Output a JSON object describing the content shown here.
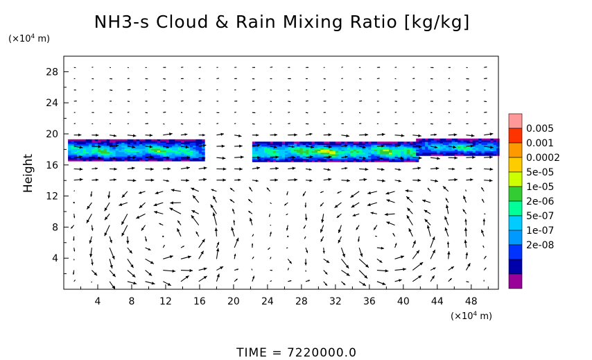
{
  "chart_data": {
    "type": "heatmap",
    "title": "NH3-s Cloud & Rain Mixing Ratio [kg/kg]",
    "ylabel": "Height",
    "xunit_prefix": "(×10",
    "xunit_exp": "4",
    "xunit_suffix": " m)",
    "yunit_prefix": "(×10",
    "yunit_exp": "4",
    "yunit_suffix": " m)",
    "xlim": [
      0,
      51.2
    ],
    "ylim": [
      0,
      30
    ],
    "xticks": [
      4,
      8,
      12,
      16,
      20,
      24,
      28,
      32,
      36,
      40,
      44,
      48
    ],
    "yticks": [
      4,
      8,
      12,
      16,
      20,
      24,
      28
    ],
    "time_label": "TIME",
    "time_value": "=  7220000.0",
    "colorbar": {
      "labels": [
        "0.005",
        "0.001",
        "0.0002",
        "5e-05",
        "1e-05",
        "2e-06",
        "5e-07",
        "1e-07",
        "2e-08"
      ],
      "colors": [
        "#ff9999",
        "#ff3300",
        "#ff9900",
        "#ffcc00",
        "#ccff00",
        "#33cc33",
        "#00ff99",
        "#00ccff",
        "#0099ff",
        "#0033ff",
        "#0000aa",
        "#990099"
      ]
    },
    "cloud_bands": [
      {
        "x": [
          0.5,
          16.5
        ],
        "y": [
          16.3,
          19.2
        ],
        "peak_level": 6
      },
      {
        "x": [
          22.2,
          41.5
        ],
        "y": [
          16.2,
          19.0
        ],
        "peak_level": 7
      },
      {
        "x": [
          41.5,
          51.2
        ],
        "y": [
          17.0,
          19.3
        ],
        "peak_level": 5
      }
    ],
    "wind_vectors": "circulation cells centered near x≈12, y≈6 and x≈38, y≈6"
  }
}
